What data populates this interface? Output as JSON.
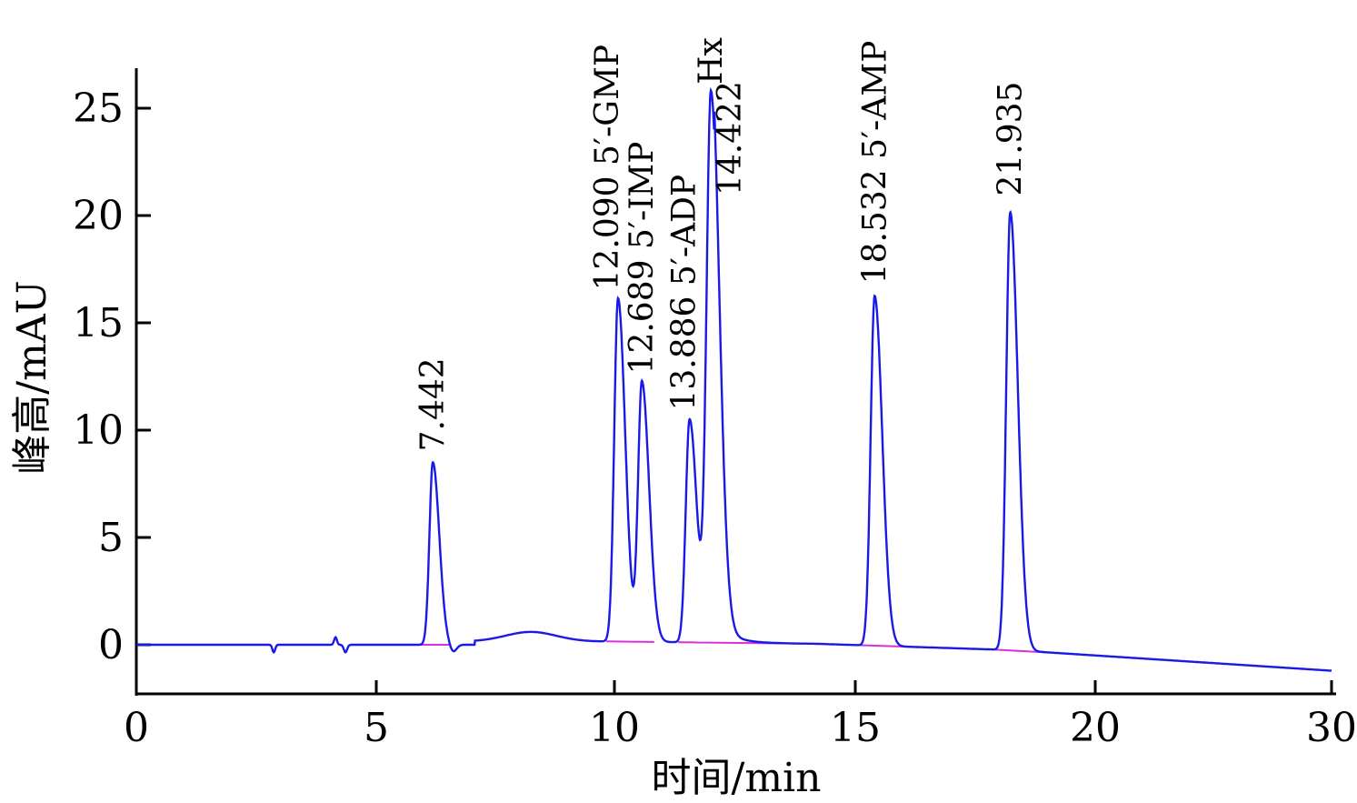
{
  "chart_data": {
    "type": "line",
    "xlabel": "时间/min",
    "ylabel": "峰高/mAU",
    "xlim": [
      0,
      30
    ],
    "ylim": [
      -2.2,
      27
    ],
    "x_ticks": [
      "0",
      "5",
      "10",
      "15",
      "20",
      "30"
    ],
    "y_ticks": [
      "0",
      "5",
      "10",
      "15",
      "20",
      "25"
    ],
    "colors": {
      "trace": "#1a1ae6",
      "baseline": "#d633d6"
    },
    "peaks": [
      {
        "rt": 7.442,
        "height": 8.5,
        "sigma": 0.085,
        "label": "7.442"
      },
      {
        "rt": 12.09,
        "height": 16.0,
        "sigma": 0.095,
        "label": "12.090 5′-GMP"
      },
      {
        "rt": 12.689,
        "height": 12.1,
        "sigma": 0.095,
        "label": "12.689 5′-IMP"
      },
      {
        "rt": 13.886,
        "height": 10.4,
        "sigma": 0.095,
        "label": "13.886 5′-ADP"
      },
      {
        "rt": 14.422,
        "height": 25.6,
        "sigma": 0.11,
        "label": "Hx"
      },
      {
        "rt": 18.532,
        "height": 16.3,
        "sigma": 0.1,
        "label": "18.532 5′-AMP"
      },
      {
        "rt": 21.935,
        "height": 20.4,
        "sigma": 0.1,
        "label": "21.935"
      }
    ],
    "extra_labels": [
      {
        "text": "14.422",
        "x": 14.9
      }
    ]
  }
}
